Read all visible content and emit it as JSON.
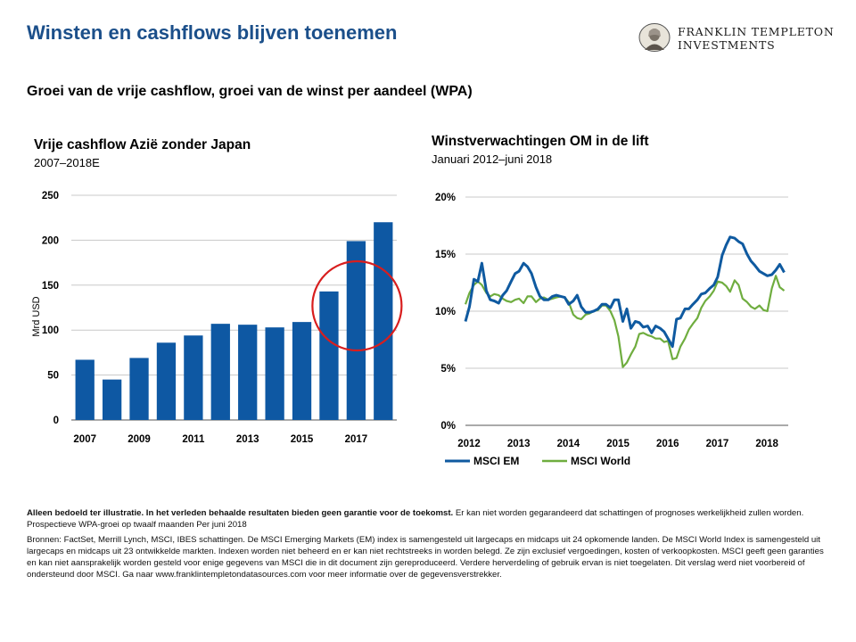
{
  "page": {
    "title": "Winsten en cashflows blijven toenemen",
    "subtitle": "Groei van de vrije cashflow, groei van de winst per aandeel (WPA)"
  },
  "logo": {
    "line1": "FRANKLIN TEMPLETON",
    "line2": "INVESTMENTS"
  },
  "colors": {
    "title": "#1b4f8a",
    "bar": "#0e58a3",
    "em": "#0f5aa0",
    "world": "#6fad3f",
    "circle": "#d81e1e"
  },
  "chart_data": [
    {
      "type": "bar",
      "title": "Vrije cashflow Azië zonder Japan",
      "subtitle": "2007–2018E",
      "ylabel": "Mrd USD",
      "ylim": [
        0,
        250
      ],
      "yticks": [
        "0",
        "50",
        "100",
        "150",
        "200",
        "250"
      ],
      "categories": [
        "2007",
        "2008",
        "2009",
        "2010",
        "2011",
        "2012",
        "2013",
        "2014",
        "2015",
        "2016",
        "2017",
        "2018"
      ],
      "xtick_labels": [
        "2007",
        "",
        "2009",
        "",
        "2011",
        "",
        "2013",
        "",
        "2015",
        "",
        "2017",
        ""
      ],
      "values": [
        67,
        45,
        69,
        86,
        94,
        107,
        106,
        103,
        109,
        143,
        199,
        220
      ],
      "highlight": "circle around 2017",
      "grid": "horizontal"
    },
    {
      "type": "line",
      "title": "Winstverwachtingen OM in de lift",
      "subtitle": "Januari 2012–juni 2018",
      "ylim": [
        0,
        20
      ],
      "yticks": [
        "0%",
        "5%",
        "10%",
        "15%",
        "20%"
      ],
      "xlim": [
        2012.0,
        2018.5
      ],
      "xticks": [
        "2012",
        "2013",
        "2014",
        "2015",
        "2016",
        "2017",
        "2018"
      ],
      "legend": "bottom",
      "grid": "horizontal",
      "series": [
        {
          "name": "MSCI EM",
          "x": [
            2012.0,
            2012.08,
            2012.17,
            2012.25,
            2012.33,
            2012.42,
            2012.5,
            2012.58,
            2012.67,
            2012.75,
            2012.83,
            2012.92,
            2013.0,
            2013.08,
            2013.17,
            2013.25,
            2013.33,
            2013.42,
            2013.5,
            2013.58,
            2013.67,
            2013.75,
            2013.83,
            2013.92,
            2014.0,
            2014.08,
            2014.17,
            2014.25,
            2014.33,
            2014.42,
            2014.5,
            2014.58,
            2014.67,
            2014.75,
            2014.83,
            2014.92,
            2015.0,
            2015.08,
            2015.17,
            2015.25,
            2015.33,
            2015.42,
            2015.5,
            2015.58,
            2015.67,
            2015.75,
            2015.83,
            2015.92,
            2016.0,
            2016.08,
            2016.17,
            2016.25,
            2016.33,
            2016.42,
            2016.5,
            2016.58,
            2016.67,
            2016.75,
            2016.83,
            2016.92,
            2017.0,
            2017.08,
            2017.17,
            2017.25,
            2017.33,
            2017.42,
            2017.5,
            2017.58,
            2017.67,
            2017.75,
            2017.83,
            2017.92,
            2018.0,
            2018.08,
            2018.17,
            2018.25,
            2018.33,
            2018.42
          ],
          "values": [
            9.1,
            10.4,
            12.8,
            12.6,
            14.2,
            11.8,
            11.0,
            10.9,
            10.7,
            11.4,
            11.8,
            12.6,
            13.3,
            13.5,
            14.2,
            13.9,
            13.3,
            12.1,
            11.3,
            11.0,
            11.0,
            11.3,
            11.4,
            11.3,
            11.2,
            10.6,
            10.9,
            11.4,
            10.4,
            9.9,
            9.9,
            10.0,
            10.2,
            10.6,
            10.6,
            10.3,
            11.0,
            11.0,
            9.1,
            10.2,
            8.5,
            9.1,
            9.0,
            8.6,
            8.7,
            8.1,
            8.7,
            8.5,
            8.2,
            7.6,
            6.9,
            9.3,
            9.4,
            10.2,
            10.2,
            10.6,
            11.0,
            11.5,
            11.6,
            12.0,
            12.3,
            13.0,
            14.9,
            15.8,
            16.5,
            16.4,
            16.1,
            15.9,
            15.0,
            14.4,
            14.0,
            13.5,
            13.3,
            13.1,
            13.2,
            13.6,
            14.1,
            13.4
          ]
        },
        {
          "name": "MSCI World",
          "x": [
            2012.0,
            2012.08,
            2012.17,
            2012.25,
            2012.33,
            2012.42,
            2012.5,
            2012.58,
            2012.67,
            2012.75,
            2012.83,
            2012.92,
            2013.0,
            2013.08,
            2013.17,
            2013.25,
            2013.33,
            2013.42,
            2013.5,
            2013.58,
            2013.67,
            2013.75,
            2013.83,
            2013.92,
            2014.0,
            2014.08,
            2014.17,
            2014.25,
            2014.33,
            2014.42,
            2014.5,
            2014.58,
            2014.67,
            2014.75,
            2014.83,
            2014.92,
            2015.0,
            2015.08,
            2015.17,
            2015.25,
            2015.33,
            2015.42,
            2015.5,
            2015.58,
            2015.67,
            2015.75,
            2015.83,
            2015.92,
            2016.0,
            2016.08,
            2016.17,
            2016.25,
            2016.33,
            2016.42,
            2016.5,
            2016.58,
            2016.67,
            2016.75,
            2016.83,
            2016.92,
            2017.0,
            2017.08,
            2017.17,
            2017.25,
            2017.33,
            2017.42,
            2017.5,
            2017.58,
            2017.67,
            2017.75,
            2017.83,
            2017.92,
            2018.0,
            2018.08,
            2018.17,
            2018.25,
            2018.33,
            2018.42
          ],
          "values": [
            10.6,
            11.6,
            12.3,
            12.6,
            12.3,
            11.6,
            11.3,
            11.5,
            11.4,
            11.1,
            10.9,
            10.8,
            11.0,
            11.1,
            10.7,
            11.3,
            11.3,
            10.8,
            11.1,
            11.2,
            11.0,
            11.1,
            11.2,
            11.3,
            11.2,
            10.8,
            9.7,
            9.4,
            9.3,
            9.7,
            9.8,
            10.0,
            10.1,
            10.5,
            10.5,
            10.0,
            9.2,
            7.8,
            5.1,
            5.5,
            6.2,
            6.9,
            8.0,
            8.1,
            7.9,
            7.8,
            7.6,
            7.6,
            7.3,
            7.4,
            5.8,
            5.9,
            6.9,
            7.6,
            8.4,
            8.9,
            9.4,
            10.3,
            10.9,
            11.3,
            11.8,
            12.6,
            12.5,
            12.2,
            11.7,
            12.7,
            12.3,
            11.1,
            10.8,
            10.4,
            10.2,
            10.5,
            10.1,
            10.0,
            12.0,
            13.1,
            12.1,
            11.8
          ]
        }
      ]
    }
  ],
  "footer": {
    "disclaimer_bold": "Alleen bedoeld ter illustratie. In het verleden behaalde resultaten bieden geen garantie voor de toekomst.",
    "disclaimer_rest": " Er kan niet worden gegarandeerd dat schattingen  of prognoses werkelijkheid zullen worden. Prospectieve WPA-groei op twaalf maanden Per juni 2018",
    "sources": "Bronnen: FactSet, Merrill Lynch, MSCI, IBES schattingen. De MSCI Emerging Markets (EM) index is samengesteld uit largecaps en midcaps uit 24 opkomende landen. De MSCI World Index is samengesteld uit largecaps en midcaps uit 23 ontwikkelde markten. Indexen worden niet beheerd en er kan niet rechtstreeks in worden belegd. Ze zijn exclusief vergoedingen, kosten of verkoopkosten. MSCI geeft geen garanties en kan niet aansprakelijk worden gesteld voor enige gegevens van MSCI die in dit document zijn gereproduceerd. Verdere herverdeling of gebruik ervan is niet toegelaten. Dit verslag werd niet voorbereid of ondersteund door MSCI. Ga naar www.franklintempletondatasources.com voor meer informatie over de gegevensverstrekker."
  }
}
